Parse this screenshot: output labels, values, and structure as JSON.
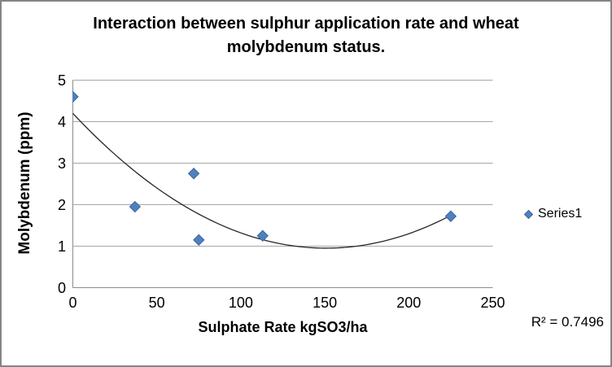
{
  "title_lines": [
    "Interaction between sulphur application rate and wheat",
    "molybdenum status."
  ],
  "chart_data": {
    "type": "scatter",
    "title": "Interaction between sulphur application rate and wheat molybdenum status.",
    "xlabel": "Sulphate Rate kgSO3/ha",
    "ylabel": "Molybdenum (ppm)",
    "xlim": [
      0,
      250
    ],
    "ylim": [
      0,
      5
    ],
    "x_ticks": [
      0,
      50,
      100,
      150,
      200,
      250
    ],
    "y_ticks": [
      0,
      1,
      2,
      3,
      4,
      5
    ],
    "grid": true,
    "legend_position": "right",
    "series": [
      {
        "name": "Series1",
        "marker": "diamond",
        "marker_color": "#4F81BD",
        "points": [
          [
            0,
            4.6
          ],
          [
            37,
            1.95
          ],
          [
            72,
            2.75
          ],
          [
            75,
            1.15
          ],
          [
            113,
            1.25
          ],
          [
            225,
            1.72
          ]
        ]
      }
    ],
    "trendline": {
      "type": "polynomial",
      "order": 2,
      "coefficients": {
        "a": 0.000143,
        "b": -0.0431,
        "c": 4.2
      },
      "x_range": [
        0,
        225
      ]
    },
    "r_squared_label": "R² = 0.7496"
  },
  "colors": {
    "marker": "#4F81BD",
    "marker_border": "#3C66A0",
    "gridline": "#A6A6A6",
    "axis": "#8C8C8C",
    "trendline": "#262626",
    "chart_border": "#858585",
    "text": "#000000"
  }
}
